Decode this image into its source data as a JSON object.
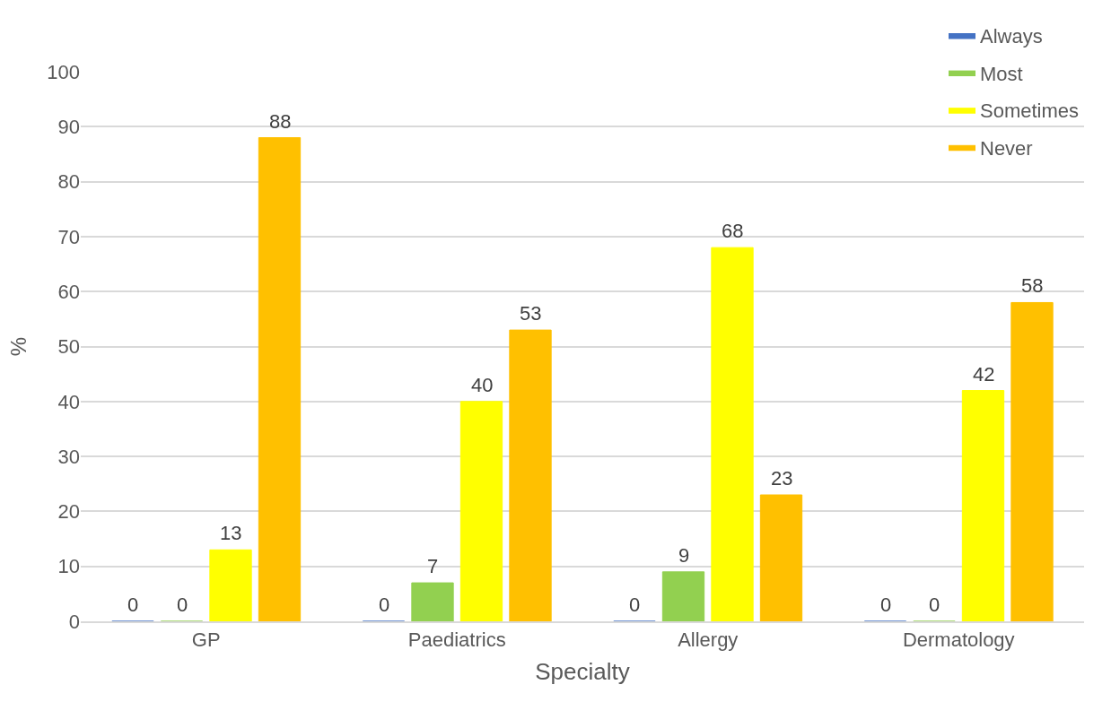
{
  "chart_data": {
    "type": "bar",
    "xlabel": "Specialty",
    "ylabel": "%",
    "categories": [
      "GP",
      "Paediatrics",
      "Allergy",
      "Dermatology"
    ],
    "series": [
      {
        "name": "Always",
        "color": "#4472c4",
        "values": [
          0,
          0,
          0,
          0
        ]
      },
      {
        "name": "Most",
        "color": "#92d050",
        "values": [
          0,
          7,
          9,
          0
        ]
      },
      {
        "name": "Sometimes",
        "color": "#ffff00",
        "values": [
          13,
          40,
          68,
          42
        ]
      },
      {
        "name": "Never",
        "color": "#ffc000",
        "values": [
          88,
          53,
          23,
          58
        ]
      }
    ],
    "ylim": [
      0,
      100
    ],
    "yticks": [
      0,
      10,
      20,
      30,
      40,
      50,
      60,
      70,
      80,
      90,
      100
    ],
    "grid": "y",
    "legend": "top right",
    "data_labels": true
  }
}
